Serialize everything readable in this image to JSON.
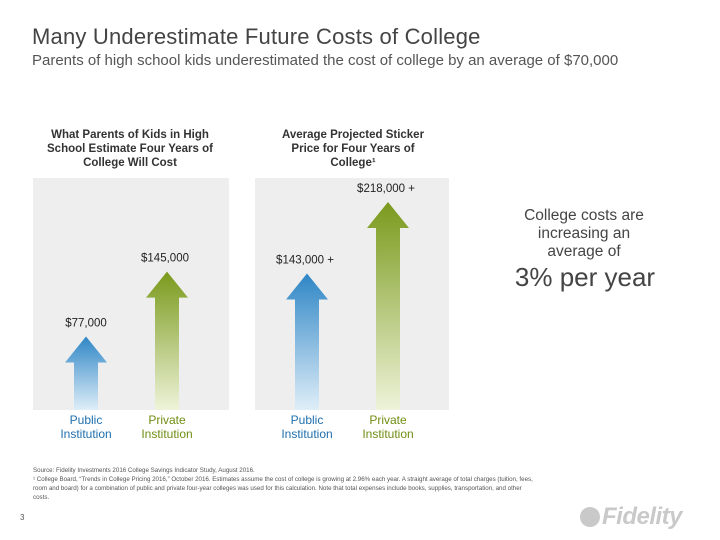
{
  "header": {
    "title": "Many Underestimate Future Costs of College",
    "subtitle": "Parents of high school kids underestimated the cost of college by an average of $70,000"
  },
  "panels": {
    "left_label": "What Parents of Kids in High School Estimate Four Years of College Will Cost",
    "right_label": "Average Projected Sticker Price for Four Years of College¹"
  },
  "chart_data": {
    "type": "bar",
    "groups": [
      "What Parents of Kids in High School Estimate Four Years of College Will Cost",
      "Average Projected Sticker Price for Four Years of College¹"
    ],
    "bars": [
      {
        "group": 0,
        "category": "Public Institution",
        "value": 77000,
        "label": "$77,000"
      },
      {
        "group": 0,
        "category": "Private Institution",
        "value": 145000,
        "label": "$145,000"
      },
      {
        "group": 1,
        "category": "Public Institution",
        "value": 143000,
        "label": "$143,000 +"
      },
      {
        "group": 1,
        "category": "Private Institution",
        "value": 218000,
        "label": "$218,000 +"
      }
    ],
    "ylim": [
      0,
      218000
    ]
  },
  "side_note": {
    "text": "College costs are increasing an average of",
    "highlight": "3% per year"
  },
  "footnotes": {
    "source": "Source: Fidelity Investments 2016 College Savings Indicator Study, August 2016.",
    "note1": "¹ College Board, “Trends in College Pricing 2016,” October 2016. Estimates assume the cost of college is growing at 2.96% each year. A straight average of total charges (tuition, fees, room and board) for a combination of public and private four-year colleges was used for this calculation. Note that total expenses include books, supplies, transportation, and other costs."
  },
  "page_number": "3",
  "logo": "Fidelity",
  "colors": {
    "public_arrow_top": "#2f86c6",
    "public_arrow_bottom": "#dfeef8",
    "private_arrow_top": "#7a9a1c",
    "private_arrow_bottom": "#eef3d9",
    "label_blue": "#1f6fae",
    "label_green": "#6f8e12",
    "panel_bg": "#eeeeee"
  }
}
